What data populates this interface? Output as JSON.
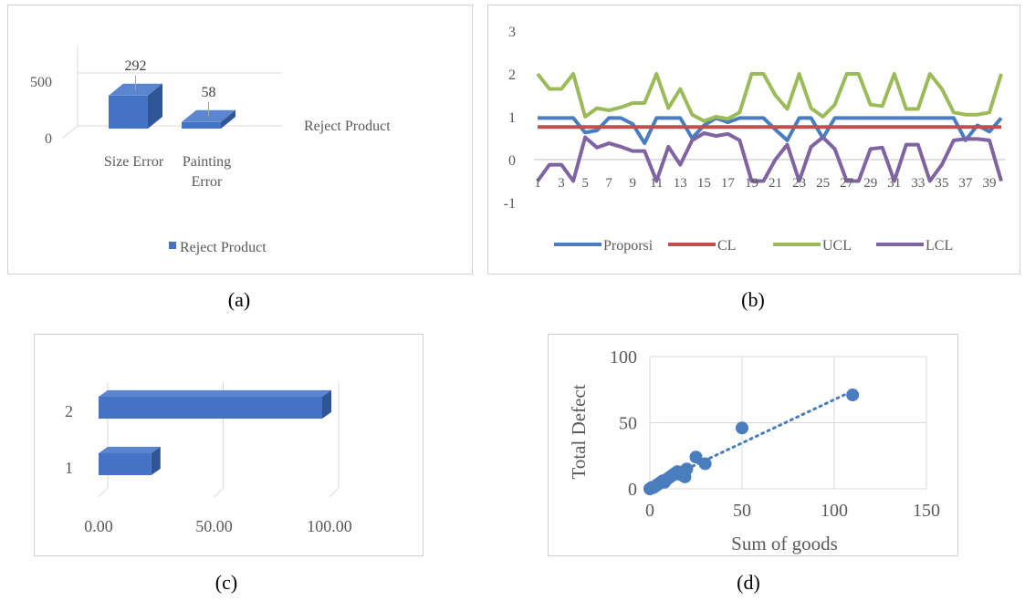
{
  "panels": {
    "a": {
      "caption": "(a)"
    },
    "b": {
      "caption": "(b)"
    },
    "c": {
      "caption": "(c)"
    },
    "d": {
      "caption": "(d)"
    }
  },
  "chart_data": [
    {
      "id": "a",
      "type": "bar",
      "categories": [
        "Size Error",
        "Painting Error"
      ],
      "category_lines": [
        [
          "Size Error"
        ],
        [
          "Painting",
          "Error"
        ]
      ],
      "series": [
        {
          "name": "Reject Product",
          "values": [
            292,
            58
          ]
        }
      ],
      "data_labels": [
        "292",
        "58"
      ],
      "depth_axis_label": "Reject Product",
      "legend": "bottom",
      "ylim": [
        0,
        500
      ],
      "yticks": [
        "0",
        "500"
      ],
      "colors": {
        "front": "#4472c4",
        "top": "#5b85cf",
        "side": "#2f5597"
      }
    },
    {
      "id": "b",
      "type": "line",
      "x": [
        1,
        2,
        3,
        4,
        5,
        6,
        7,
        8,
        9,
        10,
        11,
        12,
        13,
        14,
        15,
        16,
        17,
        18,
        19,
        20,
        21,
        22,
        23,
        24,
        25,
        26,
        27,
        28,
        29,
        30,
        31,
        32,
        33,
        34,
        35,
        36,
        37,
        38,
        39,
        40
      ],
      "xtick_labels": [
        "1",
        "3",
        "5",
        "7",
        "9",
        "11",
        "13",
        "15",
        "17",
        "19",
        "21",
        "23",
        "25",
        "27",
        "29",
        "31",
        "33",
        "35",
        "37",
        "39"
      ],
      "series": [
        {
          "name": "Proporsi",
          "color": "#4a7dbd",
          "values": [
            0.97,
            0.97,
            0.97,
            0.97,
            0.63,
            0.68,
            0.97,
            0.97,
            0.83,
            0.38,
            0.97,
            0.97,
            0.97,
            0.5,
            0.8,
            0.97,
            0.87,
            0.97,
            0.97,
            0.97,
            0.7,
            0.45,
            0.97,
            0.97,
            0.5,
            0.97,
            0.97,
            0.97,
            0.97,
            0.97,
            0.97,
            0.97,
            0.97,
            0.97,
            0.97,
            0.97,
            0.45,
            0.8,
            0.65,
            0.97
          ]
        },
        {
          "name": "CL",
          "color": "#c0504d",
          "values": [
            0.76,
            0.76,
            0.76,
            0.76,
            0.76,
            0.76,
            0.76,
            0.76,
            0.76,
            0.76,
            0.76,
            0.76,
            0.76,
            0.76,
            0.76,
            0.76,
            0.76,
            0.76,
            0.76,
            0.76,
            0.76,
            0.76,
            0.76,
            0.76,
            0.76,
            0.76,
            0.76,
            0.76,
            0.76,
            0.76,
            0.76,
            0.76,
            0.76,
            0.76,
            0.76,
            0.76,
            0.76,
            0.76,
            0.76,
            0.76
          ]
        },
        {
          "name": "UCL",
          "color": "#9bbb59",
          "values": [
            2.0,
            1.65,
            1.65,
            2.0,
            1.0,
            1.2,
            1.15,
            1.22,
            1.32,
            1.32,
            2.0,
            1.2,
            1.65,
            1.05,
            0.9,
            1.0,
            0.95,
            1.1,
            2.0,
            2.0,
            1.5,
            1.18,
            2.0,
            1.2,
            1.0,
            1.28,
            2.0,
            2.0,
            1.28,
            1.25,
            2.0,
            1.18,
            1.18,
            2.0,
            1.65,
            1.1,
            1.05,
            1.05,
            1.1,
            2.0
          ]
        },
        {
          "name": "LCL",
          "color": "#8064a2",
          "values": [
            -0.5,
            -0.12,
            -0.12,
            -0.5,
            0.52,
            0.28,
            0.38,
            0.3,
            0.2,
            0.2,
            -0.5,
            0.3,
            -0.12,
            0.45,
            0.62,
            0.55,
            0.6,
            0.45,
            -0.5,
            -0.5,
            0.0,
            0.35,
            -0.5,
            0.3,
            0.52,
            0.25,
            -0.5,
            -0.5,
            0.25,
            0.28,
            -0.5,
            0.35,
            0.35,
            -0.5,
            -0.12,
            0.45,
            0.48,
            0.48,
            0.45,
            -0.5
          ]
        }
      ],
      "ylim": [
        -1,
        3
      ],
      "yticks": [
        "-1",
        "0",
        "1",
        "2",
        "3"
      ],
      "legend": "bottom"
    },
    {
      "id": "c",
      "type": "bar",
      "orientation": "horizontal",
      "categories": [
        "1",
        "2"
      ],
      "values": [
        26,
        100
      ],
      "xlim": [
        0,
        100
      ],
      "xticks": [
        "0.00",
        "50.00",
        "100.00"
      ],
      "colors": {
        "front": "#4472c4",
        "top": "#5b85cf",
        "side": "#2f5597"
      }
    },
    {
      "id": "d",
      "type": "scatter",
      "xlabel": "Sum of goods",
      "ylabel": "Total Defect",
      "xlim": [
        0,
        150
      ],
      "ylim": [
        0,
        100
      ],
      "xticks": [
        "0",
        "50",
        "100",
        "150"
      ],
      "yticks": [
        "0",
        "50",
        "100"
      ],
      "points": [
        [
          0,
          0
        ],
        [
          1,
          1
        ],
        [
          2,
          1
        ],
        [
          3,
          2
        ],
        [
          4,
          3
        ],
        [
          5,
          4
        ],
        [
          6,
          5
        ],
        [
          7,
          6
        ],
        [
          8,
          5
        ],
        [
          9,
          7
        ],
        [
          10,
          8
        ],
        [
          11,
          9
        ],
        [
          12,
          10
        ],
        [
          13,
          11
        ],
        [
          14,
          12
        ],
        [
          15,
          13
        ],
        [
          16,
          11
        ],
        [
          18,
          10
        ],
        [
          19,
          9
        ],
        [
          20,
          15
        ],
        [
          25,
          24
        ],
        [
          30,
          19
        ],
        [
          50,
          46
        ],
        [
          110,
          71
        ]
      ],
      "trendline": {
        "x": [
          20,
          110
        ],
        "y": [
          15,
          74
        ]
      },
      "color": "#4a7dbd"
    }
  ]
}
